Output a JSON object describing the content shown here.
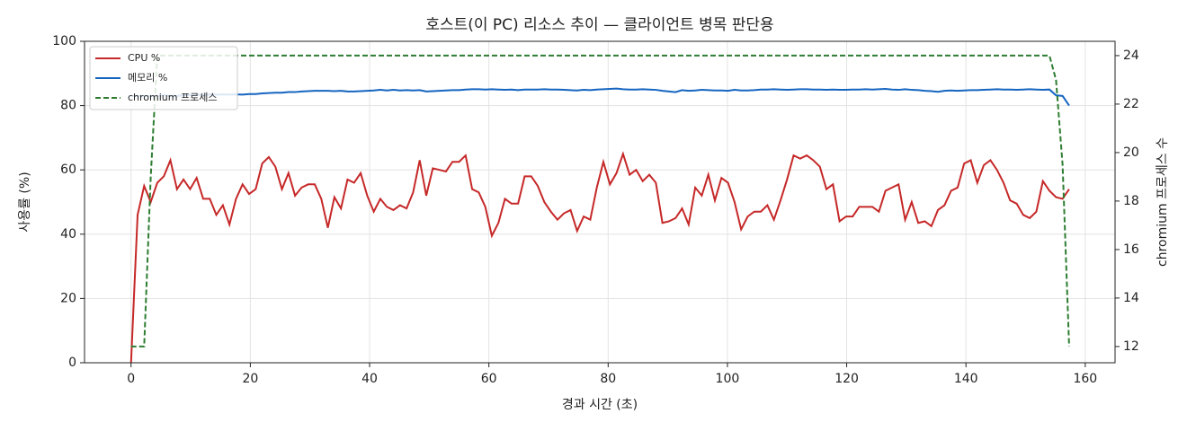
{
  "chart_data": {
    "type": "line",
    "title": "호스트(이 PC) 리소스 추이 — 클라이언트 병목 판단용",
    "xlabel": "경과 시간 (초)",
    "ylabel": "사용률 (%)",
    "y2label": "chromium 프로세스 수",
    "x": [
      0,
      1.1,
      2.2,
      3.3,
      4.4,
      5.5,
      6.6,
      7.7,
      8.8,
      9.9,
      11,
      12.1,
      13.2,
      14.3,
      15.4,
      16.5,
      17.6,
      18.7,
      19.8,
      20.9,
      22,
      23.1,
      24.2,
      25.3,
      26.4,
      27.5,
      28.6,
      29.7,
      30.8,
      31.9,
      33,
      34.1,
      35.2,
      36.3,
      37.4,
      38.5,
      39.6,
      40.7,
      41.8,
      42.9,
      44,
      45.1,
      46.2,
      47.3,
      48.4,
      49.5,
      50.6,
      51.7,
      52.8,
      53.9,
      55,
      56.1,
      57.2,
      58.3,
      59.4,
      60.5,
      61.6,
      62.7,
      63.8,
      64.9,
      66,
      67.1,
      68.2,
      69.3,
      70.4,
      71.5,
      72.6,
      73.7,
      74.8,
      75.9,
      77,
      78.1,
      79.2,
      80.3,
      81.4,
      82.5,
      83.6,
      84.7,
      85.8,
      86.9,
      88,
      89.1,
      90.2,
      91.3,
      92.4,
      93.5,
      94.6,
      95.7,
      96.8,
      97.9,
      99,
      100.1,
      101.2,
      102.3,
      103.4,
      104.5,
      105.6,
      106.7,
      107.8,
      108.9,
      110,
      111.1,
      112.2,
      113.3,
      114.4,
      115.5,
      116.6,
      117.7,
      118.8,
      119.9,
      121,
      122.1,
      123.2,
      124.3,
      125.4,
      126.5,
      127.6,
      128.7,
      129.8,
      130.9,
      132,
      133.1,
      134.2,
      135.3,
      136.4,
      137.5,
      138.6,
      139.7,
      140.8,
      141.9,
      143,
      144.1,
      145.2,
      146.3,
      147.4,
      148.5,
      149.6,
      150.7,
      151.8,
      152.9,
      154,
      155.1,
      156.2,
      157.3
    ],
    "series": [
      {
        "name": "CPU %",
        "color": "#c62828",
        "linestyle": "solid",
        "values": [
          0,
          46,
          55,
          50,
          56,
          58,
          63,
          54,
          57,
          54,
          57.5,
          51,
          51,
          46,
          49,
          43,
          51,
          55.5,
          52.5,
          54,
          62,
          64,
          61,
          54,
          59,
          52,
          54.5,
          55.5,
          55.5,
          51,
          42,
          51.5,
          48,
          57,
          56,
          59,
          52,
          47,
          51,
          48.5,
          47.5,
          49,
          48,
          53,
          63,
          52,
          60.5,
          60,
          59.5,
          62.5,
          62.5,
          64.5,
          54,
          53,
          48.5,
          39.5,
          43.5,
          51,
          49.5,
          49.5,
          58,
          58,
          55,
          50,
          47,
          44.5,
          46.5,
          47.5,
          41,
          45.5,
          44.5,
          54.5,
          62.5,
          55.5,
          59,
          65,
          58.5,
          60,
          56.5,
          58.5,
          56,
          43.5,
          44,
          45,
          48,
          43,
          54.5,
          52,
          58.5,
          50.5,
          57.5,
          56,
          50,
          41.5,
          45.5,
          47,
          47,
          49,
          44.5,
          50.5,
          57,
          64.5,
          63.5,
          64.5,
          63,
          61,
          54,
          55.5,
          44,
          45.5,
          45.5,
          48.5,
          48.5,
          48.5,
          47,
          53.5,
          54.5,
          55.5,
          44.5,
          50,
          43.5,
          44,
          42.5,
          47.5,
          49,
          53.5,
          54.5,
          62,
          63,
          56,
          61.5,
          63,
          60,
          56,
          50.5,
          49.5,
          46,
          45,
          47,
          56.5,
          53.5,
          51.5,
          51,
          54
        ]
      },
      {
        "name": "메모리 %",
        "color": "#1565c0",
        "linestyle": "solid",
        "values": [
          83,
          83,
          83,
          83,
          83,
          83.2,
          83,
          83,
          83.2,
          83.3,
          83.3,
          83.4,
          83.5,
          83.4,
          83.5,
          83.4,
          83.5,
          83.4,
          83.6,
          83.6,
          83.8,
          83.9,
          84,
          84,
          84.2,
          84.2,
          84.4,
          84.5,
          84.6,
          84.6,
          84.6,
          84.5,
          84.6,
          84.4,
          84.4,
          84.5,
          84.6,
          84.7,
          84.9,
          84.7,
          84.9,
          84.7,
          84.8,
          84.7,
          84.8,
          84.4,
          84.5,
          84.6,
          84.7,
          84.8,
          84.8,
          85,
          85.1,
          85.1,
          85,
          85.1,
          85,
          84.9,
          85,
          84.8,
          85,
          85,
          85,
          85.1,
          85,
          85,
          84.9,
          84.8,
          84.7,
          84.9,
          84.8,
          85,
          85.1,
          85.2,
          85.3,
          85.1,
          85,
          85,
          85.1,
          85,
          84.9,
          84.6,
          84.4,
          84.2,
          84.8,
          84.6,
          84.7,
          84.9,
          84.8,
          84.7,
          84.7,
          84.6,
          84.9,
          84.7,
          84.7,
          84.8,
          85,
          85,
          85.1,
          85,
          84.9,
          85,
          85.1,
          85.1,
          85,
          85,
          84.9,
          85,
          84.9,
          84.9,
          85,
          85,
          85.1,
          85,
          85.1,
          85.2,
          85,
          84.9,
          85.1,
          84.9,
          84.8,
          84.6,
          84.5,
          84.3,
          84.6,
          84.7,
          84.6,
          84.7,
          84.8,
          84.8,
          84.9,
          85,
          85.1,
          85,
          85,
          84.9,
          85,
          85.1,
          85,
          84.9,
          85,
          83.2,
          83,
          80
        ]
      },
      {
        "name": "chromium 프로세스",
        "color": "#2e7d32",
        "linestyle": "dashed",
        "axis": "y2",
        "values": [
          12,
          12,
          12,
          19,
          24,
          24,
          24,
          24,
          24,
          24,
          24,
          24,
          24,
          24,
          24,
          24,
          24,
          24,
          24,
          24,
          24,
          24,
          24,
          24,
          24,
          24,
          24,
          24,
          24,
          24,
          24,
          24,
          24,
          24,
          24,
          24,
          24,
          24,
          24,
          24,
          24,
          24,
          24,
          24,
          24,
          24,
          24,
          24,
          24,
          24,
          24,
          24,
          24,
          24,
          24,
          24,
          24,
          24,
          24,
          24,
          24,
          24,
          24,
          24,
          24,
          24,
          24,
          24,
          24,
          24,
          24,
          24,
          24,
          24,
          24,
          24,
          24,
          24,
          24,
          24,
          24,
          24,
          24,
          24,
          24,
          24,
          24,
          24,
          24,
          24,
          24,
          24,
          24,
          24,
          24,
          24,
          24,
          24,
          24,
          24,
          24,
          24,
          24,
          24,
          24,
          24,
          24,
          24,
          24,
          24,
          24,
          24,
          24,
          24,
          24,
          24,
          24,
          24,
          24,
          24,
          24,
          24,
          24,
          24,
          24,
          24,
          24,
          24,
          24,
          24,
          24,
          24,
          24,
          24,
          24,
          24,
          24,
          24,
          24,
          24,
          24,
          23,
          19.5,
          12
        ]
      }
    ],
    "xlim": [
      -7.8,
      165
    ],
    "ylim": [
      0,
      100
    ],
    "y2lim": [
      11.33,
      24.59
    ],
    "xticks": [
      0,
      20,
      40,
      60,
      80,
      100,
      120,
      140,
      160
    ],
    "yticks": [
      0,
      20,
      40,
      60,
      80,
      100
    ],
    "y2ticks": [
      12,
      14,
      16,
      18,
      20,
      22,
      24
    ],
    "grid": true,
    "legend": "upper-left"
  }
}
